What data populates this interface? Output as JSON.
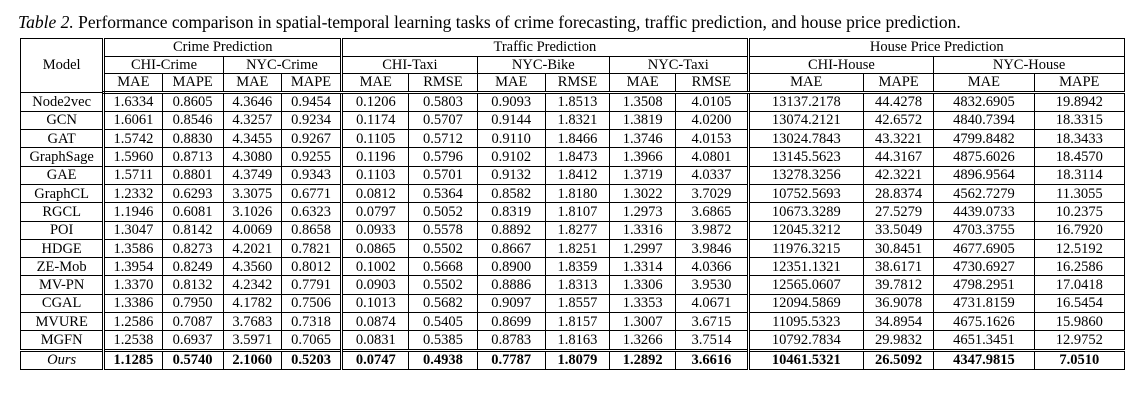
{
  "caption": {
    "label": "Table 2.",
    "text": " Performance comparison in spatial-temporal learning tasks of crime forecasting, traffic prediction, and house price prediction."
  },
  "table": {
    "header": {
      "model": "Model",
      "groups": [
        {
          "name": "Crime Prediction",
          "subgroups": [
            {
              "name": "CHI-Crime",
              "metrics": [
                "MAE",
                "MAPE"
              ]
            },
            {
              "name": "NYC-Crime",
              "metrics": [
                "MAE",
                "MAPE"
              ]
            }
          ]
        },
        {
          "name": "Traffic Prediction",
          "subgroups": [
            {
              "name": "CHI-Taxi",
              "metrics": [
                "MAE",
                "RMSE"
              ]
            },
            {
              "name": "NYC-Bike",
              "metrics": [
                "MAE",
                "RMSE"
              ]
            },
            {
              "name": "NYC-Taxi",
              "metrics": [
                "MAE",
                "RMSE"
              ]
            }
          ]
        },
        {
          "name": "House Price Prediction",
          "subgroups": [
            {
              "name": "CHI-House",
              "metrics": [
                "MAE",
                "MAPE"
              ]
            },
            {
              "name": "NYC-House",
              "metrics": [
                "MAE",
                "MAPE"
              ]
            }
          ]
        }
      ]
    },
    "rows": [
      [
        "Node2vec",
        "1.6334",
        "0.8605",
        "4.3646",
        "0.9454",
        "0.1206",
        "0.5803",
        "0.9093",
        "1.8513",
        "1.3508",
        "4.0105",
        "13137.2178",
        "44.4278",
        "4832.6905",
        "19.8942"
      ],
      [
        "GCN",
        "1.6061",
        "0.8546",
        "4.3257",
        "0.9234",
        "0.1174",
        "0.5707",
        "0.9144",
        "1.8321",
        "1.3819",
        "4.0200",
        "13074.2121",
        "42.6572",
        "4840.7394",
        "18.3315"
      ],
      [
        "GAT",
        "1.5742",
        "0.8830",
        "4.3455",
        "0.9267",
        "0.1105",
        "0.5712",
        "0.9110",
        "1.8466",
        "1.3746",
        "4.0153",
        "13024.7843",
        "43.3221",
        "4799.8482",
        "18.3433"
      ],
      [
        "GraphSage",
        "1.5960",
        "0.8713",
        "4.3080",
        "0.9255",
        "0.1196",
        "0.5796",
        "0.9102",
        "1.8473",
        "1.3966",
        "4.0801",
        "13145.5623",
        "44.3167",
        "4875.6026",
        "18.4570"
      ],
      [
        "GAE",
        "1.5711",
        "0.8801",
        "4.3749",
        "0.9343",
        "0.1103",
        "0.5701",
        "0.9132",
        "1.8412",
        "1.3719",
        "4.0337",
        "13278.3256",
        "42.3221",
        "4896.9564",
        "18.3114"
      ],
      [
        "GraphCL",
        "1.2332",
        "0.6293",
        "3.3075",
        "0.6771",
        "0.0812",
        "0.5364",
        "0.8582",
        "1.8180",
        "1.3022",
        "3.7029",
        "10752.5693",
        "28.8374",
        "4562.7279",
        "11.3055"
      ],
      [
        "RGCL",
        "1.1946",
        "0.6081",
        "3.1026",
        "0.6323",
        "0.0797",
        "0.5052",
        "0.8319",
        "1.8107",
        "1.2973",
        "3.6865",
        "10673.3289",
        "27.5279",
        "4439.0733",
        "10.2375"
      ],
      [
        "POI",
        "1.3047",
        "0.8142",
        "4.0069",
        "0.8658",
        "0.0933",
        "0.5578",
        "0.8892",
        "1.8277",
        "1.3316",
        "3.9872",
        "12045.3212",
        "33.5049",
        "4703.3755",
        "16.7920"
      ],
      [
        "HDGE",
        "1.3586",
        "0.8273",
        "4.2021",
        "0.7821",
        "0.0865",
        "0.5502",
        "0.8667",
        "1.8251",
        "1.2997",
        "3.9846",
        "11976.3215",
        "30.8451",
        "4677.6905",
        "12.5192"
      ],
      [
        "ZE-Mob",
        "1.3954",
        "0.8249",
        "4.3560",
        "0.8012",
        "0.1002",
        "0.5668",
        "0.8900",
        "1.8359",
        "1.3314",
        "4.0366",
        "12351.1321",
        "38.6171",
        "4730.6927",
        "16.2586"
      ],
      [
        "MV-PN",
        "1.3370",
        "0.8132",
        "4.2342",
        "0.7791",
        "0.0903",
        "0.5502",
        "0.8886",
        "1.8313",
        "1.3306",
        "3.9530",
        "12565.0607",
        "39.7812",
        "4798.2951",
        "17.0418"
      ],
      [
        "CGAL",
        "1.3386",
        "0.7950",
        "4.1782",
        "0.7506",
        "0.1013",
        "0.5682",
        "0.9097",
        "1.8557",
        "1.3353",
        "4.0671",
        "12094.5869",
        "36.9078",
        "4731.8159",
        "16.5454"
      ],
      [
        "MVURE",
        "1.2586",
        "0.7087",
        "3.7683",
        "0.7318",
        "0.0874",
        "0.5405",
        "0.8699",
        "1.8157",
        "1.3007",
        "3.6715",
        "11095.5323",
        "34.8954",
        "4675.1626",
        "15.9860"
      ],
      [
        "MGFN",
        "1.2538",
        "0.6937",
        "3.5971",
        "0.7065",
        "0.0831",
        "0.5385",
        "0.8783",
        "1.8163",
        "1.3266",
        "3.7514",
        "10792.7834",
        "29.9832",
        "4651.3451",
        "12.9752"
      ],
      [
        "Ours",
        "1.1285",
        "0.5740",
        "2.1060",
        "0.5203",
        "0.0747",
        "0.4938",
        "0.7787",
        "1.8079",
        "1.2892",
        "3.6616",
        "10461.5321",
        "26.5092",
        "4347.9815",
        "7.0510"
      ]
    ]
  }
}
